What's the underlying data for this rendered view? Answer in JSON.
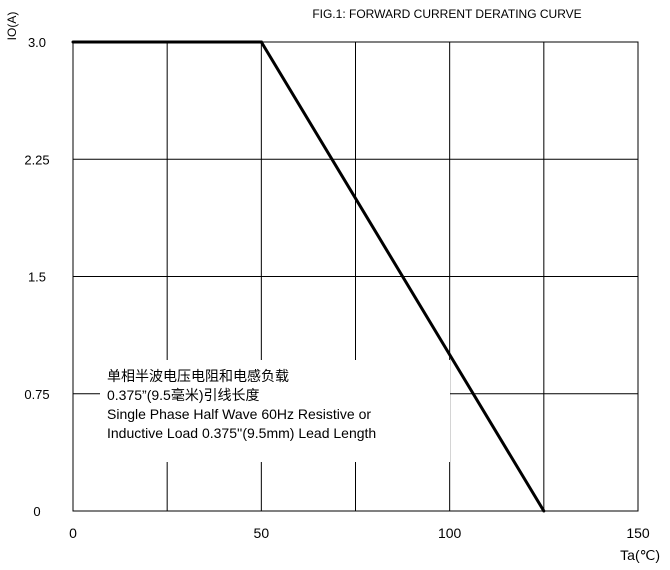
{
  "chart_data": {
    "type": "line",
    "title": "FIG.1:   FORWARD CURRENT  DERATING CURVE",
    "xlabel": "Ta(℃)",
    "ylabel": "IO(A)",
    "xlim": [
      0,
      150
    ],
    "ylim": [
      0,
      3.0
    ],
    "x_ticks": [
      0,
      50,
      100,
      150
    ],
    "x_tick_labels": [
      "0",
      "50",
      "100",
      "150"
    ],
    "y_ticks": [
      0,
      0.75,
      1.5,
      2.25,
      3.0
    ],
    "y_tick_labels": [
      "0",
      "0.75",
      "1.5",
      "2.25",
      "3.0"
    ],
    "grid": true,
    "series": [
      {
        "x": [
          0,
          50,
          125
        ],
        "y": [
          3.0,
          3.0,
          0
        ]
      }
    ],
    "annotation_lines": [
      "单相半波电压电阻和电感负载",
      "0.375”(9.5毫米)引线长度",
      "Single Phase Half Wave 60Hz Resistive or",
      "Inductive Load 0.375''(9.5mm) Lead Length"
    ]
  }
}
